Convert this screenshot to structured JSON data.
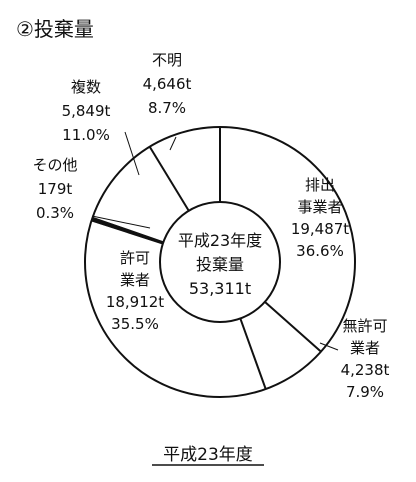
{
  "chart_data": {
    "type": "pie",
    "title": "②投棄量",
    "subtitle": "平成23年度",
    "center_label": [
      "平成23年度",
      "投棄量",
      "53,311t"
    ],
    "total": 53311,
    "unit": "t",
    "slices": [
      {
        "label": [
          "排出",
          "事業者"
        ],
        "value": 19487,
        "value_text": "19,487t",
        "percent_text": "36.6%"
      },
      {
        "label": [
          "無許可",
          "業者"
        ],
        "value": 4238,
        "value_text": "4,238t",
        "percent_text": "7.9%"
      },
      {
        "label": [
          "許可",
          "業者"
        ],
        "value": 18912,
        "value_text": "18,912t",
        "percent_text": "35.5%"
      },
      {
        "label": [
          "その他"
        ],
        "value": 179,
        "value_text": "179t",
        "percent_text": "0.3%"
      },
      {
        "label": [
          "複数"
        ],
        "value": 5849,
        "value_text": "5,849t",
        "percent_text": "11.0%"
      },
      {
        "label": [
          "不明"
        ],
        "value": 4646,
        "value_text": "4,646t",
        "percent_text": "8.7%"
      }
    ]
  },
  "colors": {
    "stroke": "#111111",
    "fill": "#ffffff"
  }
}
